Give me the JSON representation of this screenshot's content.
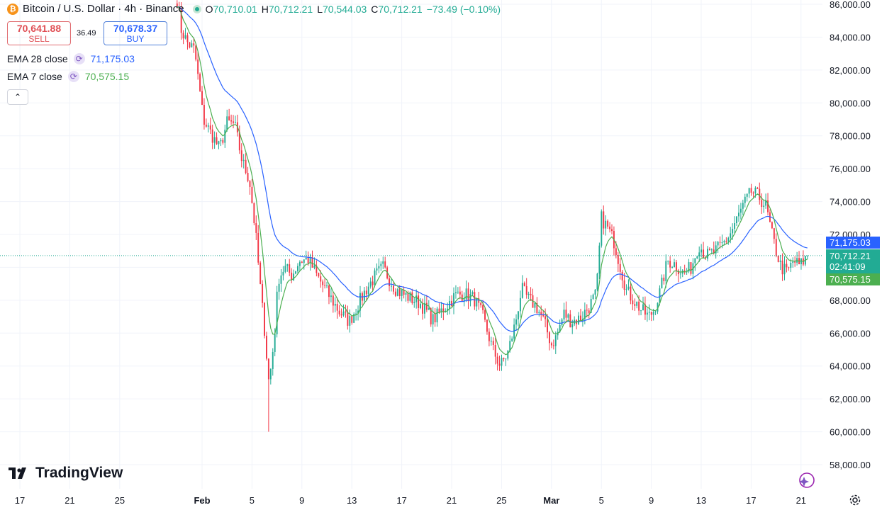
{
  "header": {
    "symbol_icon": "bitcoin-icon",
    "title": "Bitcoin / U.S. Dollar · 4h · Binance",
    "ohlc": [
      {
        "key": "O",
        "value": "70,710.01"
      },
      {
        "key": "H",
        "value": "70,712.21"
      },
      {
        "key": "L",
        "value": "70,544.03"
      },
      {
        "key": "C",
        "value": "70,712.21"
      }
    ],
    "change": "−73.49 (−0.10%)"
  },
  "trade": {
    "sell_price": "70,641.88",
    "sell_label": "SELL",
    "spread": "36.49",
    "buy_price": "70,678.37",
    "buy_label": "BUY"
  },
  "indicators": [
    {
      "name": "EMA 28 close",
      "value": "71,175.03",
      "color": "#2962ff"
    },
    {
      "name": "EMA 7 close",
      "value": "70,575.15",
      "color": "#4caf50"
    }
  ],
  "price_tags": {
    "ema28": "71,175.03",
    "last_price": "70,712.21",
    "countdown": "02:41:09",
    "ema7": "70,575.15"
  },
  "colors": {
    "up": "#22ab94",
    "down": "#f23645",
    "ema28": "#2962ff",
    "ema7": "#4caf50",
    "last_price_tag": "#22ab94"
  },
  "branding": {
    "logo_text": "TradingView"
  },
  "chart_data": {
    "type": "candlestick",
    "interval": "4h",
    "ylim": [
      57000,
      86500
    ],
    "y_ticks": [
      "86,000.00",
      "84,000.00",
      "82,000.00",
      "80,000.00",
      "78,000.00",
      "76,000.00",
      "74,000.00",
      "72,000.00",
      "70,000.00",
      "68,000.00",
      "66,000.00",
      "64,000.00",
      "62,000.00",
      "60,000.00",
      "58,000.00"
    ],
    "x_ticks": [
      {
        "label": "17",
        "day": -14.6,
        "bold": false
      },
      {
        "label": "21",
        "day": -10.6,
        "bold": false
      },
      {
        "label": "25",
        "day": -6.6,
        "bold": false
      },
      {
        "label": "Feb",
        "day": 0,
        "bold": true
      },
      {
        "label": "5",
        "day": 4,
        "bold": false
      },
      {
        "label": "9",
        "day": 8,
        "bold": false
      },
      {
        "label": "13",
        "day": 12,
        "bold": false
      },
      {
        "label": "17",
        "day": 16,
        "bold": false
      },
      {
        "label": "21",
        "day": 20,
        "bold": false
      },
      {
        "label": "25",
        "day": 24,
        "bold": false
      },
      {
        "label": "Mar",
        "day": 28,
        "bold": true
      },
      {
        "label": "5",
        "day": 32,
        "bold": false
      },
      {
        "label": "9",
        "day": 36,
        "bold": false
      },
      {
        "label": "13",
        "day": 40,
        "bold": false
      },
      {
        "label": "17",
        "day": 44,
        "bold": false
      },
      {
        "label": "21",
        "day": 48,
        "bold": false
      }
    ],
    "anchors": [
      [
        -2.0,
        86300
      ],
      [
        -1.7,
        84500
      ],
      [
        -1.2,
        83700
      ],
      [
        -0.6,
        83200
      ],
      [
        0.1,
        79000
      ],
      [
        0.6,
        78300
      ],
      [
        1.4,
        77200
      ],
      [
        2.0,
        78800
      ],
      [
        2.6,
        78700
      ],
      [
        3.2,
        76500
      ],
      [
        3.8,
        75300
      ],
      [
        4.3,
        72000
      ],
      [
        4.7,
        68500
      ],
      [
        5.1,
        65500
      ],
      [
        5.3,
        63000
      ],
      [
        5.5,
        63800
      ],
      [
        5.8,
        65800
      ],
      [
        6.1,
        69300
      ],
      [
        6.6,
        70000
      ],
      [
        7.2,
        69500
      ],
      [
        7.8,
        70400
      ],
      [
        8.5,
        70500
      ],
      [
        9.2,
        69500
      ],
      [
        10.0,
        68500
      ],
      [
        11.0,
        67300
      ],
      [
        11.8,
        66700
      ],
      [
        12.4,
        67600
      ],
      [
        13.1,
        68600
      ],
      [
        13.9,
        69500
      ],
      [
        14.5,
        70000
      ],
      [
        15.0,
        69300
      ],
      [
        15.6,
        68600
      ],
      [
        16.5,
        68200
      ],
      [
        17.5,
        67800
      ],
      [
        18.5,
        66800
      ],
      [
        19.5,
        67600
      ],
      [
        20.3,
        68300
      ],
      [
        21.0,
        68400
      ],
      [
        21.8,
        68100
      ],
      [
        22.5,
        67000
      ],
      [
        23.3,
        65000
      ],
      [
        23.9,
        64000
      ],
      [
        24.5,
        64800
      ],
      [
        25.1,
        66600
      ],
      [
        25.6,
        68700
      ],
      [
        26.1,
        68100
      ],
      [
        26.8,
        67600
      ],
      [
        27.4,
        66700
      ],
      [
        28.0,
        65300
      ],
      [
        28.4,
        65800
      ],
      [
        29.0,
        67200
      ],
      [
        29.6,
        66700
      ],
      [
        30.3,
        66900
      ],
      [
        31.0,
        67600
      ],
      [
        31.6,
        68400
      ],
      [
        32.0,
        73000
      ],
      [
        32.5,
        72400
      ],
      [
        33.0,
        71600
      ],
      [
        33.6,
        69800
      ],
      [
        34.0,
        68600
      ],
      [
        34.6,
        68000
      ],
      [
        35.2,
        67400
      ],
      [
        35.8,
        67000
      ],
      [
        36.2,
        67400
      ],
      [
        36.7,
        68500
      ],
      [
        37.3,
        70400
      ],
      [
        37.9,
        70200
      ],
      [
        38.6,
        69600
      ],
      [
        39.2,
        70000
      ],
      [
        39.8,
        71400
      ],
      [
        40.4,
        70700
      ],
      [
        41.0,
        70900
      ],
      [
        41.6,
        71300
      ],
      [
        42.3,
        72000
      ],
      [
        42.9,
        73000
      ],
      [
        43.4,
        73800
      ],
      [
        44.0,
        74600
      ],
      [
        44.6,
        74300
      ],
      [
        45.2,
        73700
      ],
      [
        45.6,
        72200
      ],
      [
        46.0,
        71000
      ],
      [
        46.4,
        70000
      ],
      [
        46.9,
        69700
      ],
      [
        47.4,
        70400
      ],
      [
        47.9,
        70100
      ],
      [
        48.3,
        70500
      ],
      [
        48.6,
        70712
      ]
    ],
    "candle_step_days": 0.1667,
    "first_candle_day": -2.0,
    "series": [
      {
        "name": "EMA 28 close",
        "type": "line",
        "period": 28,
        "color": "#2962ff"
      },
      {
        "name": "EMA 7 close",
        "type": "line",
        "period": 7,
        "color": "#4caf50"
      }
    ],
    "last_price": 70712.21,
    "grid": true
  },
  "bottom": {
    "assistant_icon": "sparkle-icon",
    "settings_icon": "gear-icon"
  }
}
